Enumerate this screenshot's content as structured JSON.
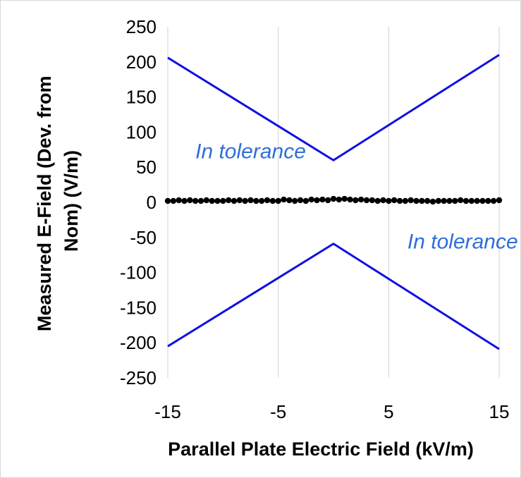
{
  "chart_data": {
    "type": "line",
    "title": "",
    "xlabel": "Parallel Plate Electric Field (kV/m)",
    "ylabel_lines": [
      "Measured E-Field (Dev. from",
      "Nom) (V/m)"
    ],
    "xlim": [
      -15,
      15
    ],
    "ylim": [
      -250,
      250
    ],
    "x_ticks": [
      -15,
      -5,
      5,
      15
    ],
    "y_ticks": [
      250,
      200,
      150,
      100,
      50,
      0,
      -50,
      -100,
      -150,
      -200,
      -250
    ],
    "grid": {
      "x_major": true,
      "y_major": false
    },
    "legend": "none",
    "annotations": [
      {
        "text": "In tolerance",
        "x": -7.5,
        "y": 63,
        "color": "#2f6ed9"
      },
      {
        "text": "In tolerance",
        "x": 11.7,
        "y": -66,
        "color": "#2f6ed9"
      }
    ],
    "series": [
      {
        "role": "upper tolerance limit",
        "color": "#1010e0",
        "style": "line",
        "x": [
          -15,
          0,
          15
        ],
        "y": [
          206,
          60,
          210
        ]
      },
      {
        "role": "lower tolerance limit",
        "color": "#1010e0",
        "style": "line",
        "x": [
          -15,
          0,
          15
        ],
        "y": [
          -205,
          -59,
          -209
        ]
      },
      {
        "role": "measured deviation",
        "color": "#000000",
        "style": "markers",
        "x": [
          -15,
          -14.5,
          -14,
          -13.5,
          -13,
          -12.5,
          -12,
          -11.5,
          -11,
          -10.5,
          -10,
          -9.5,
          -9,
          -8.5,
          -8,
          -7.5,
          -7,
          -6.5,
          -6,
          -5.5,
          -5,
          -4.5,
          -4,
          -3.5,
          -3,
          -2.5,
          -2,
          -1.5,
          -1,
          -0.5,
          0,
          0.5,
          1,
          1.5,
          2,
          2.5,
          3,
          3.5,
          4,
          4.5,
          5,
          5.5,
          6,
          6.5,
          7,
          7.5,
          8,
          8.5,
          9,
          9.5,
          10,
          10.5,
          11,
          11.5,
          12,
          12.5,
          13,
          13.5,
          14,
          14.5,
          15
        ],
        "y": [
          2,
          2,
          3,
          2,
          3,
          2,
          2,
          3,
          2,
          2,
          2,
          3,
          2,
          3,
          2,
          3,
          2,
          2,
          3,
          2,
          2,
          4,
          3,
          2,
          3,
          2,
          4,
          3,
          4,
          3,
          5,
          4,
          5,
          4,
          3,
          4,
          3,
          3,
          2,
          3,
          2,
          3,
          2,
          2,
          3,
          2,
          2,
          2,
          1,
          2,
          2,
          2,
          2,
          3,
          2,
          2,
          2,
          2,
          2,
          2,
          3
        ]
      }
    ]
  }
}
